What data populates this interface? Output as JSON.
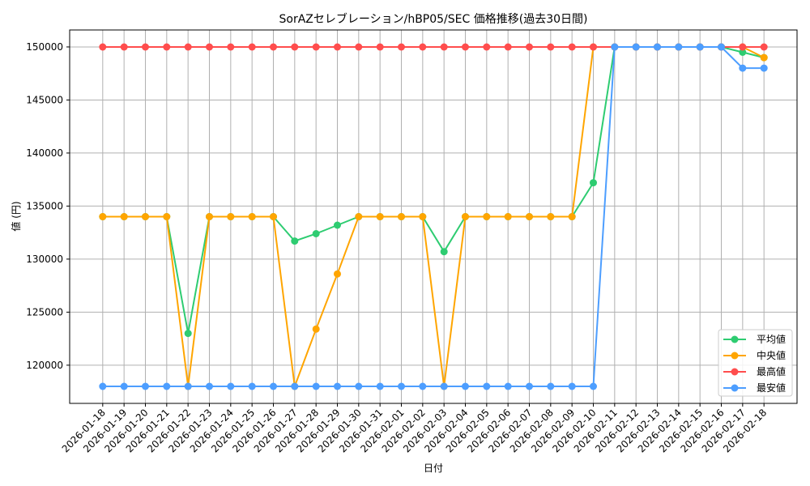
{
  "chart_data": {
    "type": "line",
    "title": "SorAZセレブレーション/hBP05/SEC 価格推移(過去30日間)",
    "xlabel": "日付",
    "ylabel": "値 (円)",
    "ylim": [
      116400,
      151600
    ],
    "yticks": [
      120000,
      125000,
      130000,
      135000,
      140000,
      145000,
      150000
    ],
    "grid": true,
    "legend_position": "lower right",
    "x": [
      "2026-01-18",
      "2026-01-19",
      "2026-01-20",
      "2026-01-21",
      "2026-01-22",
      "2026-01-23",
      "2026-01-24",
      "2026-01-25",
      "2026-01-26",
      "2026-01-27",
      "2026-01-28",
      "2026-01-29",
      "2026-01-30",
      "2026-01-31",
      "2026-02-01",
      "2026-02-02",
      "2026-02-03",
      "2026-02-04",
      "2026-02-05",
      "2026-02-06",
      "2026-02-07",
      "2026-02-08",
      "2026-02-09",
      "2026-02-10",
      "2026-02-11",
      "2026-02-12",
      "2026-02-13",
      "2026-02-14",
      "2026-02-15",
      "2026-02-16",
      "2026-02-17",
      "2026-02-18"
    ],
    "series": [
      {
        "name": "平均値",
        "color": "#2ecc71",
        "values": [
          134000,
          134000,
          134000,
          134000,
          123000,
          134000,
          134000,
          134000,
          134000,
          131700,
          132400,
          133200,
          134000,
          134000,
          134000,
          134000,
          130700,
          134000,
          134000,
          134000,
          134000,
          134000,
          134000,
          137200,
          150000,
          150000,
          150000,
          150000,
          150000,
          150000,
          149500,
          149000
        ]
      },
      {
        "name": "中央値",
        "color": "#ffa500",
        "values": [
          134000,
          134000,
          134000,
          134000,
          118000,
          134000,
          134000,
          134000,
          134000,
          118000,
          123400,
          128600,
          134000,
          134000,
          134000,
          134000,
          118000,
          134000,
          134000,
          134000,
          134000,
          134000,
          134000,
          150000,
          150000,
          150000,
          150000,
          150000,
          150000,
          150000,
          150000,
          149000
        ]
      },
      {
        "name": "最高値",
        "color": "#ff4d4d",
        "values": [
          150000,
          150000,
          150000,
          150000,
          150000,
          150000,
          150000,
          150000,
          150000,
          150000,
          150000,
          150000,
          150000,
          150000,
          150000,
          150000,
          150000,
          150000,
          150000,
          150000,
          150000,
          150000,
          150000,
          150000,
          150000,
          150000,
          150000,
          150000,
          150000,
          150000,
          150000,
          150000
        ]
      },
      {
        "name": "最安値",
        "color": "#4d9eff",
        "values": [
          118000,
          118000,
          118000,
          118000,
          118000,
          118000,
          118000,
          118000,
          118000,
          118000,
          118000,
          118000,
          118000,
          118000,
          118000,
          118000,
          118000,
          118000,
          118000,
          118000,
          118000,
          118000,
          118000,
          118000,
          150000,
          150000,
          150000,
          150000,
          150000,
          150000,
          148000,
          148000
        ]
      }
    ]
  }
}
